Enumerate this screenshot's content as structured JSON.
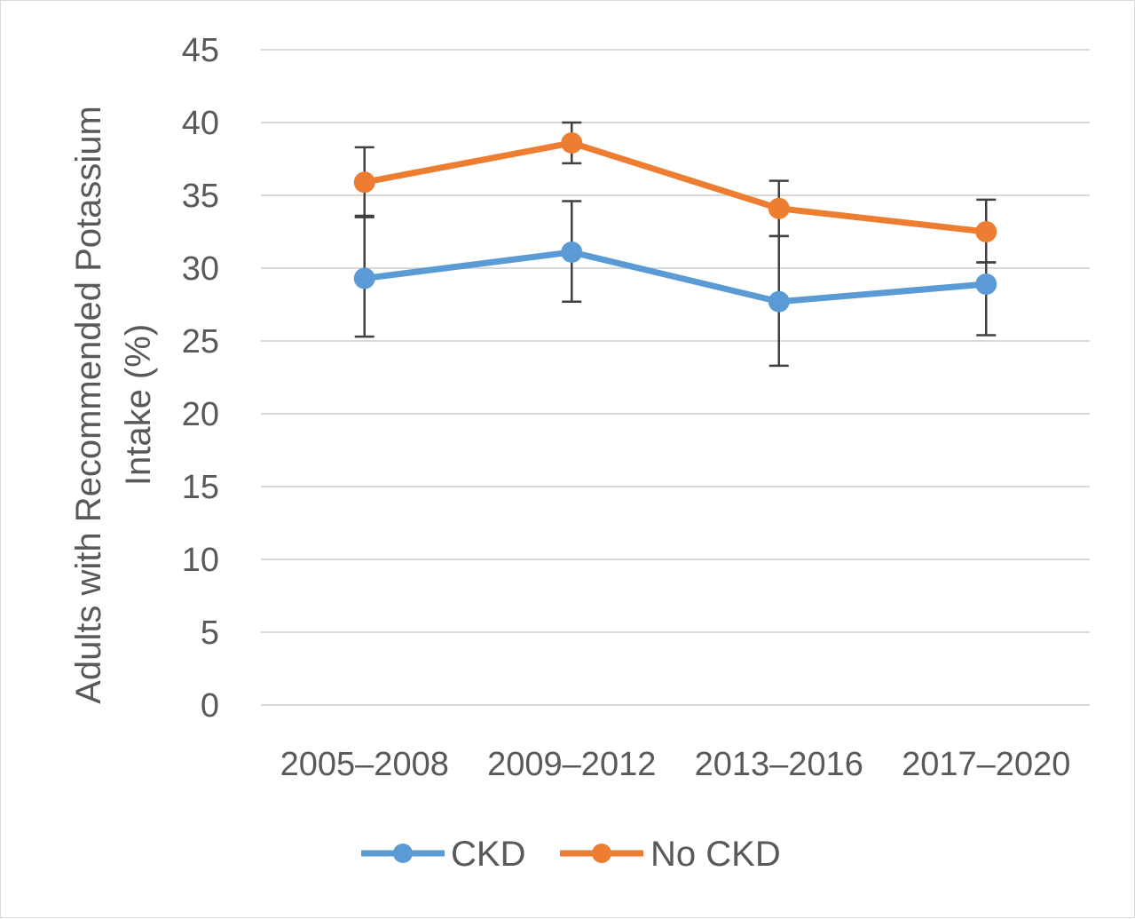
{
  "chart_data": {
    "type": "line",
    "categories": [
      "2005–2008",
      "2009–2012",
      "2013–2016",
      "2017–2020"
    ],
    "series": [
      {
        "name": "CKD",
        "color": "#5b9bd5",
        "values": [
          29.3,
          31.1,
          27.7,
          28.9
        ],
        "error_low": [
          25.3,
          27.7,
          23.3,
          25.4
        ],
        "error_high": [
          33.5,
          34.6,
          32.2,
          30.4
        ]
      },
      {
        "name": "No CKD",
        "color": "#ed7d31",
        "values": [
          35.9,
          38.6,
          34.1,
          32.5
        ],
        "error_low": [
          33.6,
          37.2,
          32.2,
          30.4
        ],
        "error_high": [
          38.3,
          40.0,
          36.0,
          34.7
        ]
      }
    ],
    "ylabel_lines": [
      "Adults with Recommended  Potassium",
      "Intake (%)"
    ],
    "xlabel": "",
    "ylim": [
      0,
      45
    ],
    "yticks": [
      "0",
      "5",
      "10",
      "15",
      "20",
      "25",
      "30",
      "35",
      "40",
      "45"
    ],
    "grid": true,
    "legend_position": "bottom",
    "gridline_color": "#d9d9d9",
    "errorbar_color": "#404040"
  }
}
